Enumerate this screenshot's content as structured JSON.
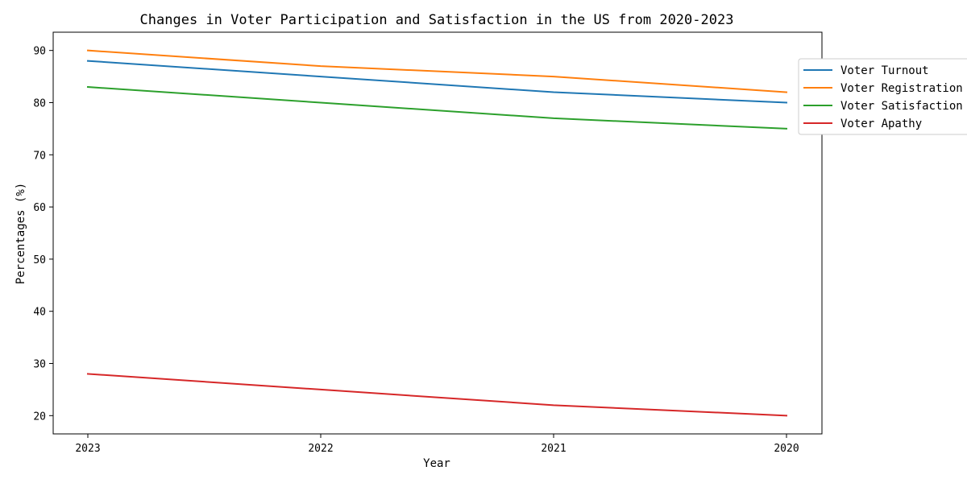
{
  "chart_data": {
    "type": "line",
    "title": "Changes in Voter Participation and Satisfaction in the US from 2020-2023",
    "xlabel": "Year",
    "ylabel": "Percentages (%)",
    "categories": [
      "2023",
      "2022",
      "2021",
      "2020"
    ],
    "yticks": [
      20,
      30,
      40,
      50,
      60,
      70,
      80,
      90
    ],
    "ylim": [
      16.5,
      93.5
    ],
    "grid": false,
    "legend_position": "upper-right-outside",
    "series": [
      {
        "name": "Voter Turnout",
        "color": "#1f77b4",
        "values": [
          88,
          85,
          82,
          80
        ]
      },
      {
        "name": "Voter Registration",
        "color": "#ff7f0e",
        "values": [
          90,
          87,
          85,
          82
        ]
      },
      {
        "name": "Voter Satisfaction",
        "color": "#2ca02c",
        "values": [
          83,
          80,
          77,
          75
        ]
      },
      {
        "name": "Voter Apathy",
        "color": "#d62728",
        "values": [
          28,
          25,
          22,
          20
        ]
      }
    ]
  }
}
